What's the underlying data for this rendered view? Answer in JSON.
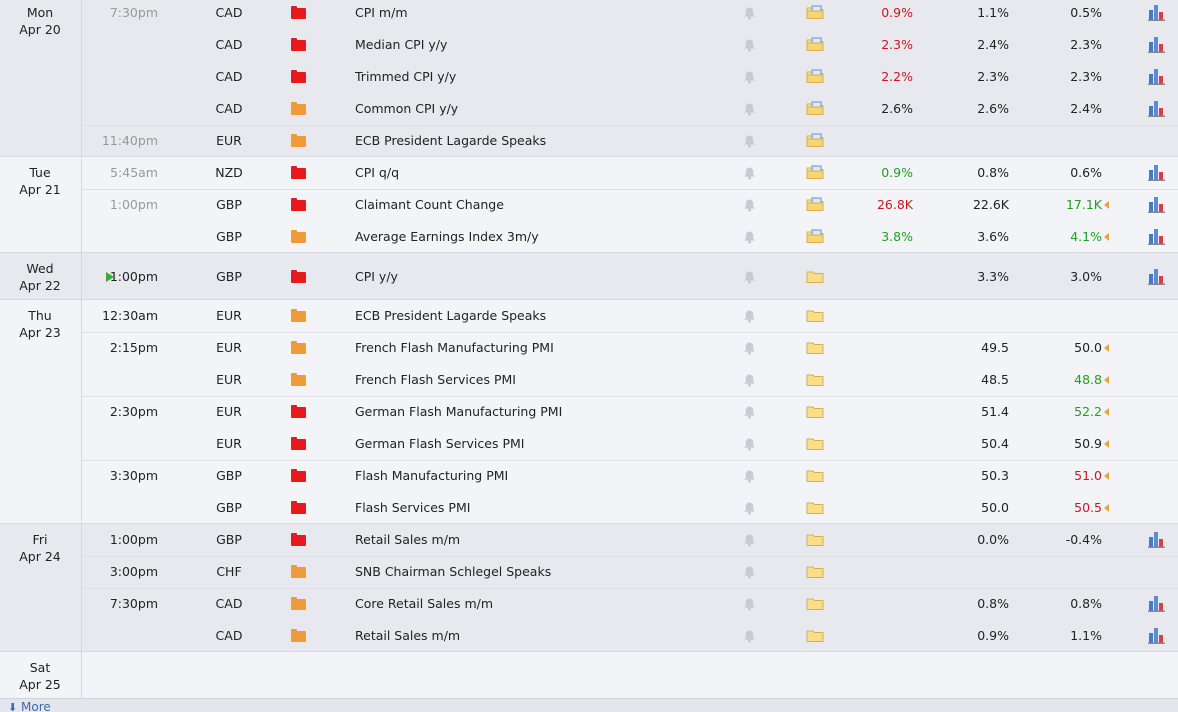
{
  "days": [
    {
      "day": "Mon",
      "date": "Apr 20",
      "past": true,
      "rows": [
        {
          "time": "7:30pm",
          "currency": "CAD",
          "impact": "high",
          "event": "CPI m/m",
          "actual": "0.9%",
          "actual_tone": "worse",
          "forecast": "1.1%",
          "previous": "0.5%",
          "chart": true
        },
        {
          "currency": "CAD",
          "impact": "high",
          "event": "Median CPI y/y",
          "actual": "2.3%",
          "actual_tone": "worse",
          "forecast": "2.4%",
          "previous": "2.3%",
          "chart": true
        },
        {
          "currency": "CAD",
          "impact": "high",
          "event": "Trimmed CPI y/y",
          "actual": "2.2%",
          "actual_tone": "worse",
          "forecast": "2.3%",
          "previous": "2.3%",
          "chart": true
        },
        {
          "currency": "CAD",
          "impact": "medium",
          "event": "Common CPI y/y",
          "actual": "2.6%",
          "forecast": "2.6%",
          "previous": "2.4%",
          "chart": true
        },
        {
          "time": "11:40pm",
          "currency": "EUR",
          "impact": "medium",
          "event": "ECB President Lagarde Speaks"
        }
      ]
    },
    {
      "day": "Tue",
      "date": "Apr 21",
      "past": true,
      "rows": [
        {
          "time": "5:45am",
          "currency": "NZD",
          "impact": "high",
          "event": "CPI q/q",
          "actual": "0.9%",
          "actual_tone": "better",
          "forecast": "0.8%",
          "previous": "0.6%",
          "chart": true
        },
        {
          "time": "1:00pm",
          "currency": "GBP",
          "impact": "high",
          "event": "Claimant Count Change",
          "actual": "26.8K",
          "actual_tone": "worse",
          "forecast": "22.6K",
          "previous": "17.1K",
          "previous_tone": "better",
          "revised": true,
          "chart": true
        },
        {
          "currency": "GBP",
          "impact": "medium",
          "event": "Average Earnings Index 3m/y",
          "actual": "3.8%",
          "actual_tone": "better",
          "forecast": "3.6%",
          "previous": "4.1%",
          "previous_tone": "better",
          "revised": true,
          "chart": true
        }
      ]
    },
    {
      "day": "Wed",
      "date": "Apr 22",
      "rows": [
        {
          "time": "1:00pm",
          "upnext": true,
          "currency": "GBP",
          "impact": "high",
          "event": "CPI y/y",
          "forecast": "3.3%",
          "previous": "3.0%",
          "chart": true
        }
      ]
    },
    {
      "day": "Thu",
      "date": "Apr 23",
      "rows": [
        {
          "time": "12:30am",
          "currency": "EUR",
          "impact": "medium",
          "event": "ECB President Lagarde Speaks"
        },
        {
          "time": "2:15pm",
          "currency": "EUR",
          "impact": "medium",
          "event": "French Flash Manufacturing PMI",
          "forecast": "49.5",
          "previous": "50.0",
          "revised": true
        },
        {
          "currency": "EUR",
          "impact": "medium",
          "event": "French Flash Services PMI",
          "forecast": "48.5",
          "previous": "48.8",
          "previous_tone": "better",
          "revised": true
        },
        {
          "time": "2:30pm",
          "currency": "EUR",
          "impact": "high",
          "event": "German Flash Manufacturing PMI",
          "forecast": "51.4",
          "previous": "52.2",
          "previous_tone": "better",
          "revised": true
        },
        {
          "currency": "EUR",
          "impact": "high",
          "event": "German Flash Services PMI",
          "forecast": "50.4",
          "previous": "50.9",
          "revised": true
        },
        {
          "time": "3:30pm",
          "currency": "GBP",
          "impact": "high",
          "event": "Flash Manufacturing PMI",
          "forecast": "50.3",
          "previous": "51.0",
          "previous_tone": "worse",
          "revised": true
        },
        {
          "currency": "GBP",
          "impact": "high",
          "event": "Flash Services PMI",
          "forecast": "50.0",
          "previous": "50.5",
          "previous_tone": "worse",
          "revised": true
        }
      ]
    },
    {
      "day": "Fri",
      "date": "Apr 24",
      "rows": [
        {
          "time": "1:00pm",
          "currency": "GBP",
          "impact": "high",
          "event": "Retail Sales m/m",
          "forecast": "0.0%",
          "previous": "-0.4%",
          "chart": true
        },
        {
          "time": "3:00pm",
          "currency": "CHF",
          "impact": "medium",
          "event": "SNB Chairman Schlegel Speaks"
        },
        {
          "time": "7:30pm",
          "currency": "CAD",
          "impact": "medium",
          "event": "Core Retail Sales m/m",
          "forecast": "0.8%",
          "previous": "0.8%",
          "chart": true
        },
        {
          "currency": "CAD",
          "impact": "medium",
          "event": "Retail Sales m/m",
          "forecast": "0.9%",
          "previous": "1.1%",
          "chart": true
        }
      ]
    },
    {
      "day": "Sat",
      "date": "Apr 25"
    }
  ],
  "footer": {
    "more": "More"
  }
}
